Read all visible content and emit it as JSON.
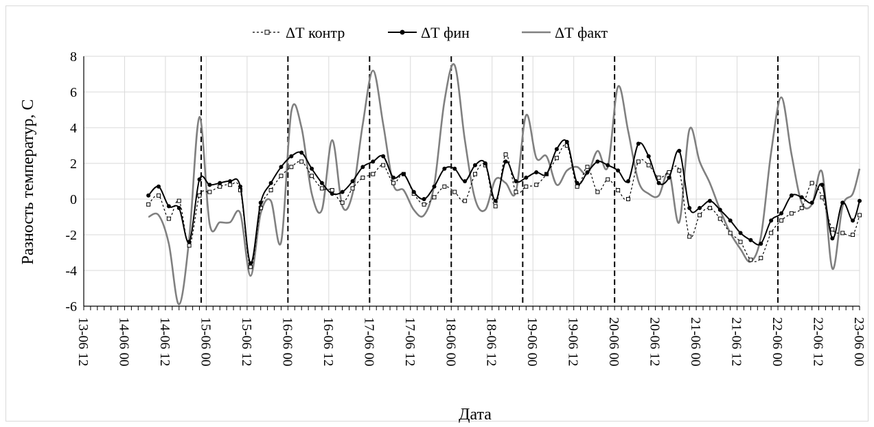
{
  "chart_data": {
    "type": "line",
    "xlabel": "Дата",
    "ylabel": "Разность температур, С",
    "ylim": [
      -6,
      8
    ],
    "yticks": [
      8,
      6,
      4,
      2,
      0,
      -2,
      -4,
      -6
    ],
    "xlim": [
      0,
      228
    ],
    "xtick_labels": [
      "13-06 12",
      "14-06 00",
      "14-06 12",
      "15-06 00",
      "15-06 12",
      "16-06 00",
      "16-06 12",
      "17-06 00",
      "17-06 12",
      "18-06 00",
      "18-06 12",
      "19-06 00",
      "19-06 12",
      "20-06 00",
      "20-06 12",
      "21-06 00",
      "21-06 12",
      "22-06 00",
      "22-06 12",
      "23-06 00"
    ],
    "grid": true,
    "legend_position": "top",
    "vertical_dashed_lines_at": [
      34.5,
      60,
      84,
      108,
      129,
      156,
      204
    ],
    "series": [
      {
        "name": "ΔТ контр",
        "style": "dashed",
        "color": "#000000",
        "marker": "square-open",
        "x": [
          19,
          22,
          25,
          28,
          31,
          34,
          37,
          40,
          43,
          46,
          49,
          52,
          55,
          58,
          61,
          64,
          67,
          70,
          73,
          76,
          79,
          82,
          85,
          88,
          91,
          94,
          97,
          100,
          103,
          106,
          109,
          112,
          115,
          118,
          121,
          124,
          127,
          130,
          133,
          136,
          139,
          142,
          145,
          148,
          151,
          154,
          157,
          160,
          163,
          166,
          169,
          172,
          175,
          178,
          181,
          184,
          187,
          190,
          193,
          196,
          199,
          202,
          205,
          208,
          211,
          214,
          217,
          220,
          223,
          226,
          228
        ],
        "y": [
          -0.3,
          0.2,
          -1.1,
          -0.1,
          -2.6,
          0.2,
          0.4,
          0.7,
          0.8,
          0.5,
          -3.8,
          -0.5,
          0.5,
          1.3,
          1.8,
          2.1,
          1.3,
          0.6,
          0.5,
          -0.2,
          0.6,
          1.2,
          1.4,
          1.9,
          0.9,
          1.4,
          0.3,
          -0.3,
          0.1,
          0.7,
          0.4,
          -0.1,
          1.4,
          1.9,
          -0.4,
          2.5,
          0.4,
          0.7,
          0.8,
          1.4,
          2.3,
          3.0,
          0.7,
          1.8,
          0.4,
          1.1,
          0.5,
          0.0,
          2.1,
          1.9,
          1.2,
          1.5,
          1.6,
          -2.1,
          -0.9,
          -0.5,
          -1.1,
          -1.9,
          -2.4,
          -3.4,
          -3.3,
          -1.9,
          -1.2,
          -0.8,
          -0.5,
          0.9,
          0.1,
          -1.7,
          -1.9,
          -2.0,
          -0.9
        ]
      },
      {
        "name": "ΔТ фин",
        "style": "solid",
        "color": "#000000",
        "marker": "dot",
        "x": [
          19,
          22,
          25,
          28,
          31,
          34,
          37,
          40,
          43,
          46,
          49,
          52,
          55,
          58,
          61,
          64,
          67,
          70,
          73,
          76,
          79,
          82,
          85,
          88,
          91,
          94,
          97,
          100,
          103,
          106,
          109,
          112,
          115,
          118,
          121,
          124,
          127,
          130,
          133,
          136,
          139,
          142,
          145,
          148,
          151,
          154,
          157,
          160,
          163,
          166,
          169,
          172,
          175,
          178,
          181,
          184,
          187,
          190,
          193,
          196,
          199,
          202,
          205,
          208,
          211,
          214,
          217,
          220,
          223,
          226,
          228
        ],
        "y": [
          0.2,
          0.7,
          -0.4,
          -0.5,
          -2.4,
          1.1,
          0.8,
          0.9,
          1.0,
          0.7,
          -3.6,
          -0.2,
          0.9,
          1.8,
          2.4,
          2.6,
          1.7,
          0.9,
          0.3,
          0.4,
          1.0,
          1.8,
          2.1,
          2.4,
          1.2,
          1.4,
          0.4,
          0.0,
          0.7,
          1.7,
          1.7,
          1.0,
          1.9,
          2.0,
          -0.1,
          2.1,
          1.0,
          1.2,
          1.5,
          1.4,
          2.8,
          3.2,
          0.9,
          1.5,
          2.1,
          1.9,
          1.6,
          1.0,
          3.1,
          2.4,
          0.9,
          1.2,
          2.7,
          -0.5,
          -0.5,
          -0.1,
          -0.6,
          -1.2,
          -1.9,
          -2.3,
          -2.5,
          -1.2,
          -0.8,
          0.2,
          0.1,
          -0.2,
          0.8,
          -2.2,
          -0.2,
          -1.2,
          -0.1
        ]
      },
      {
        "name": "ΔТ факт",
        "style": "solid",
        "color": "#808080",
        "marker": "none",
        "x": [
          19,
          22,
          25,
          28,
          31,
          34,
          37,
          40,
          43,
          46,
          49,
          52,
          55,
          58,
          61,
          64,
          67,
          70,
          73,
          76,
          79,
          82,
          85,
          88,
          91,
          94,
          97,
          100,
          103,
          106,
          109,
          112,
          115,
          118,
          121,
          124,
          127,
          130,
          133,
          136,
          139,
          142,
          145,
          148,
          151,
          154,
          157,
          160,
          163,
          166,
          169,
          172,
          175,
          178,
          181,
          184,
          187,
          190,
          193,
          196,
          199,
          202,
          205,
          208,
          211,
          214,
          217,
          220,
          223,
          226,
          228
        ],
        "y": [
          -1.0,
          -0.9,
          -2.5,
          -5.9,
          -2.2,
          4.6,
          -1.4,
          -1.3,
          -1.3,
          -0.8,
          -4.3,
          -0.8,
          -0.1,
          -2.4,
          4.9,
          4.0,
          0.3,
          -0.6,
          3.3,
          -0.4,
          0.3,
          4.2,
          7.2,
          4.2,
          0.8,
          0.5,
          -0.6,
          -0.9,
          0.8,
          5.5,
          7.5,
          3.3,
          0.0,
          -0.6,
          1.1,
          0.9,
          0.4,
          4.7,
          2.3,
          2.4,
          0.8,
          1.6,
          1.8,
          1.4,
          2.7,
          1.8,
          6.3,
          3.8,
          1.0,
          0.3,
          0.2,
          1.5,
          -1.3,
          3.9,
          2.1,
          0.9,
          -0.6,
          -1.9,
          -2.8,
          -3.5,
          -2.1,
          2.6,
          5.7,
          2.5,
          -0.2,
          -0.3,
          1.5,
          -3.9,
          -0.4,
          0.3,
          1.7
        ]
      }
    ]
  }
}
